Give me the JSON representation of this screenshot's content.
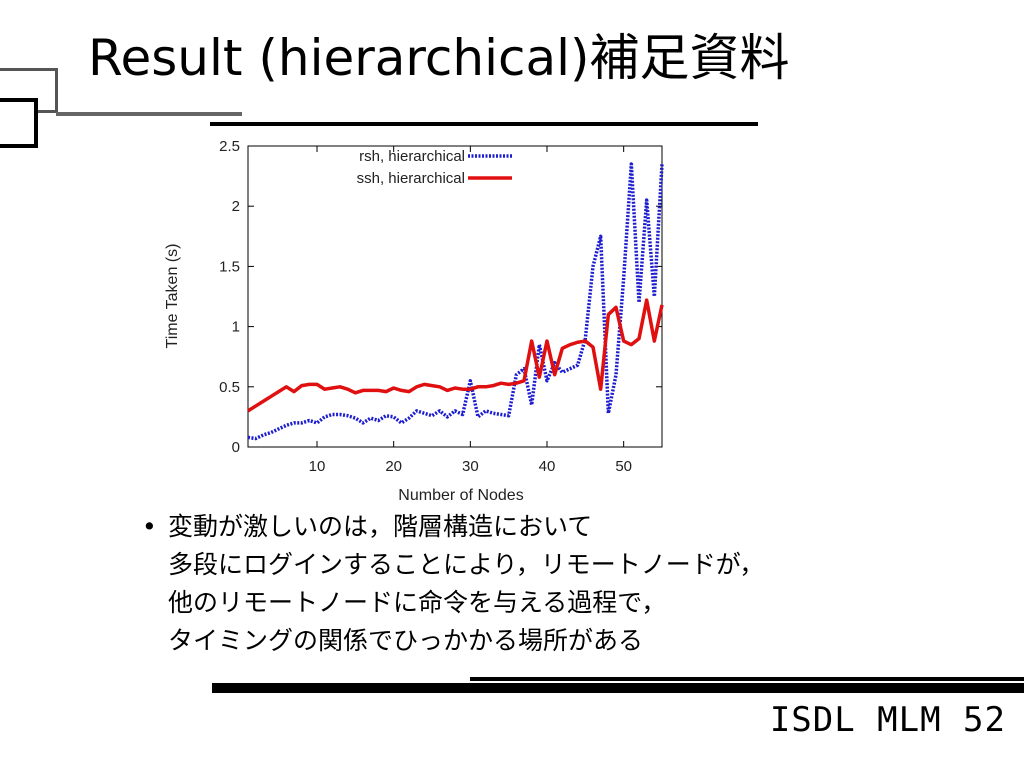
{
  "slide": {
    "title": "Result (hierarchical)補足資料",
    "bullet_lines": [
      "変動が激しいのは，階層構造において",
      "多段にログインすることにより，リモートノードが，",
      "他のリモートノードに命令を与える過程で，",
      "タイミングの関係でひっかかる場所がある"
    ],
    "footer": "ISDL MLM 52"
  },
  "chart_data": {
    "type": "line",
    "xlabel": "Number of Nodes",
    "ylabel": "Time Taken (s)",
    "xlim": [
      1,
      55
    ],
    "ylim": [
      0,
      2.5
    ],
    "xticks": [
      10,
      20,
      30,
      40,
      50
    ],
    "yticks": [
      0,
      0.5,
      1,
      1.5,
      2,
      2.5
    ],
    "legend_position": "top",
    "x": [
      1,
      2,
      3,
      4,
      5,
      6,
      7,
      8,
      9,
      10,
      11,
      12,
      13,
      14,
      15,
      16,
      17,
      18,
      19,
      20,
      21,
      22,
      23,
      24,
      25,
      26,
      27,
      28,
      29,
      30,
      31,
      32,
      33,
      34,
      35,
      36,
      37,
      38,
      39,
      40,
      41,
      42,
      43,
      44,
      45,
      46,
      47,
      48,
      49,
      50,
      51,
      52,
      53,
      54,
      55
    ],
    "series": [
      {
        "name": "rsh, hierarchical",
        "color": "#1c1cd0",
        "style": "dotted",
        "values": [
          0.08,
          0.07,
          0.1,
          0.12,
          0.15,
          0.18,
          0.2,
          0.2,
          0.22,
          0.2,
          0.25,
          0.27,
          0.27,
          0.26,
          0.24,
          0.2,
          0.24,
          0.22,
          0.26,
          0.25,
          0.2,
          0.24,
          0.3,
          0.28,
          0.26,
          0.3,
          0.25,
          0.3,
          0.27,
          0.55,
          0.25,
          0.3,
          0.28,
          0.27,
          0.26,
          0.6,
          0.65,
          0.35,
          0.85,
          0.55,
          0.7,
          0.62,
          0.65,
          0.68,
          0.9,
          1.5,
          1.75,
          0.28,
          0.6,
          1.4,
          2.35,
          1.2,
          2.05,
          1.25,
          2.35
        ]
      },
      {
        "name": "ssh, hierarchical",
        "color": "#e01010",
        "style": "solid",
        "values": [
          0.3,
          0.34,
          0.38,
          0.42,
          0.46,
          0.5,
          0.46,
          0.51,
          0.52,
          0.52,
          0.48,
          0.49,
          0.5,
          0.48,
          0.45,
          0.47,
          0.47,
          0.47,
          0.46,
          0.49,
          0.47,
          0.46,
          0.5,
          0.52,
          0.51,
          0.5,
          0.47,
          0.49,
          0.48,
          0.48,
          0.5,
          0.5,
          0.51,
          0.53,
          0.52,
          0.53,
          0.55,
          0.88,
          0.58,
          0.88,
          0.6,
          0.82,
          0.85,
          0.87,
          0.88,
          0.83,
          0.48,
          1.1,
          1.16,
          0.88,
          0.85,
          0.9,
          1.22,
          0.88,
          1.18
        ]
      }
    ]
  }
}
